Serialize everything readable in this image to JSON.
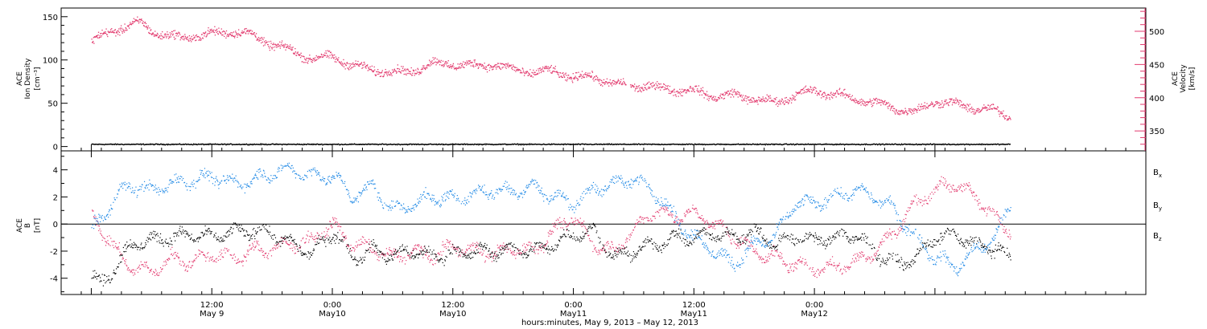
{
  "chart_data": [
    {
      "type": "scatter",
      "panel": "top",
      "ylabel_lines": [
        "ACE",
        "Ion Density",
        "[cm⁻³]"
      ],
      "y2label_lines": [
        "ACE",
        "Velocity",
        "[km/s]"
      ],
      "ylim": [
        -5,
        160
      ],
      "yticks": [
        0,
        50,
        100,
        150
      ],
      "y2lim": [
        320,
        535
      ],
      "y2ticks": [
        350,
        400,
        450,
        500
      ],
      "series": [
        {
          "axis": "left",
          "color": "#000000",
          "x_hours": [
            0,
            96
          ],
          "values": [
            2.5,
            2.5
          ]
        },
        {
          "axis": "right",
          "color": "#e23a6e",
          "x_hours": [
            0,
            1,
            2,
            3,
            4,
            5,
            6,
            7,
            8,
            9,
            10,
            12,
            14,
            16,
            18,
            20,
            22,
            24,
            26,
            28,
            30,
            32,
            34,
            36,
            38,
            40,
            42,
            44,
            46,
            48,
            50,
            52,
            54,
            56,
            58,
            60,
            62,
            64,
            66,
            68,
            70,
            72,
            74,
            76,
            78,
            80,
            82,
            84,
            86,
            88,
            90,
            91.5
          ],
          "values": [
            485,
            492,
            500,
            505,
            510,
            512,
            500,
            495,
            492,
            490,
            492,
            496,
            500,
            494,
            480,
            470,
            458,
            462,
            448,
            442,
            438,
            440,
            452,
            450,
            448,
            450,
            442,
            438,
            440,
            430,
            432,
            420,
            418,
            416,
            412,
            410,
            402,
            404,
            398,
            392,
            404,
            410,
            405,
            398,
            392,
            384,
            378,
            395,
            390,
            384,
            380,
            372
          ]
        }
      ]
    },
    {
      "type": "scatter",
      "panel": "bottom",
      "ylabel_lines": [
        "ACE",
        "B",
        "[nT]"
      ],
      "ylim": [
        -5.2,
        5.4
      ],
      "yticks": [
        -4,
        -2,
        0,
        2,
        4
      ],
      "legend": "right",
      "series": [
        {
          "name": "B",
          "subscript": "x",
          "color": "#000000",
          "x_hours": [
            0,
            1,
            2,
            3,
            4,
            6,
            8,
            10,
            12,
            14,
            16,
            18,
            20,
            22,
            24,
            26,
            28,
            30,
            32,
            34,
            36,
            38,
            40,
            42,
            44,
            46,
            48,
            50,
            52,
            54,
            56,
            58,
            60,
            62,
            64,
            66,
            68,
            70,
            72,
            74,
            76,
            78,
            80,
            82,
            84,
            86,
            88,
            90,
            91.5
          ],
          "values": [
            -3.8,
            -4.5,
            -3.5,
            -2.5,
            -1.5,
            -1.2,
            -1.0,
            -0.8,
            -1.0,
            -0.6,
            -0.5,
            -0.7,
            -1.5,
            -2.2,
            -0.5,
            -2.5,
            -2.0,
            -2.3,
            -2.0,
            -2.4,
            -2.2,
            -2.0,
            -2.0,
            -1.8,
            -2.0,
            -1.5,
            -0.8,
            -0.5,
            -2.5,
            -2.0,
            -1.5,
            -1.0,
            -1.0,
            -0.7,
            -1.0,
            -0.5,
            -1.5,
            -1.0,
            -1.2,
            -1.0,
            -0.8,
            -2.0,
            -3.0,
            -2.5,
            -1.0,
            -0.8,
            -1.5,
            -1.8,
            -2.6
          ]
        },
        {
          "name": "B",
          "subscript": "y",
          "color": "#1e88e5",
          "x_hours": [
            0,
            1,
            2,
            3,
            4,
            6,
            8,
            10,
            12,
            14,
            16,
            18,
            20,
            22,
            24,
            26,
            28,
            30,
            32,
            34,
            36,
            38,
            40,
            42,
            44,
            46,
            48,
            50,
            52,
            54,
            56,
            58,
            60,
            62,
            64,
            66,
            68,
            70,
            72,
            74,
            76,
            78,
            80,
            82,
            84,
            86,
            88,
            90,
            91.5
          ],
          "values": [
            -0.5,
            0.5,
            1.5,
            2.5,
            2.8,
            2.5,
            3.0,
            3.2,
            3.5,
            3.0,
            3.2,
            3.8,
            4.0,
            3.5,
            3.6,
            2.0,
            2.8,
            1.0,
            1.5,
            2.0,
            1.8,
            2.2,
            2.5,
            2.4,
            2.8,
            2.0,
            1.5,
            2.5,
            3.0,
            3.3,
            2.5,
            0.5,
            -1.0,
            -2.0,
            -3.0,
            -1.5,
            -1.0,
            1.5,
            1.5,
            2.0,
            2.5,
            2.0,
            1.0,
            -1.0,
            -2.5,
            -3.2,
            -2.0,
            -1.0,
            1.5
          ]
        },
        {
          "name": "B",
          "subscript": "z",
          "color": "#e23a6e",
          "x_hours": [
            0,
            1,
            2,
            3,
            4,
            6,
            8,
            10,
            12,
            14,
            16,
            18,
            20,
            22,
            24,
            26,
            28,
            30,
            32,
            34,
            36,
            38,
            40,
            42,
            44,
            46,
            48,
            50,
            52,
            54,
            56,
            58,
            60,
            62,
            64,
            66,
            68,
            70,
            72,
            74,
            76,
            78,
            80,
            82,
            84,
            86,
            88,
            90,
            91.5
          ],
          "values": [
            0.8,
            -0.5,
            -1.5,
            -2.5,
            -3.2,
            -3.5,
            -2.5,
            -2.8,
            -2.2,
            -2.6,
            -2.0,
            -1.8,
            -1.5,
            -1.2,
            0.0,
            -1.5,
            -1.8,
            -2.5,
            -2.0,
            -2.4,
            -1.6,
            -2.0,
            -2.2,
            -1.8,
            -2.0,
            -0.5,
            0.5,
            -1.5,
            -2.0,
            -0.5,
            1.0,
            0.5,
            0.8,
            0.0,
            -1.0,
            -2.0,
            -2.5,
            -3.0,
            -3.3,
            -3.2,
            -2.8,
            -2.0,
            -0.5,
            1.5,
            2.5,
            3.0,
            2.0,
            0.5,
            -0.5
          ]
        }
      ]
    }
  ],
  "x_axis": {
    "xlim_hours": [
      -3,
      105
    ],
    "major_ticks_hours": [
      0,
      12,
      24,
      36,
      48,
      60,
      72,
      84
    ],
    "tick_labels": [
      "12:00",
      "0:00",
      "12:00",
      "0:00",
      "12:00",
      "0:00"
    ],
    "tick_label_hours": [
      12,
      24,
      36,
      48,
      60,
      72
    ],
    "date_labels": [
      "May 9",
      "May10",
      "May10",
      "May11",
      "May11",
      "May12"
    ],
    "caption": "hours:minutes, May  9, 2013 – May 12, 2013"
  },
  "colors": {
    "accent_red": "#e23a6e",
    "accent_blue": "#1e88e5",
    "ink": "#000000"
  }
}
